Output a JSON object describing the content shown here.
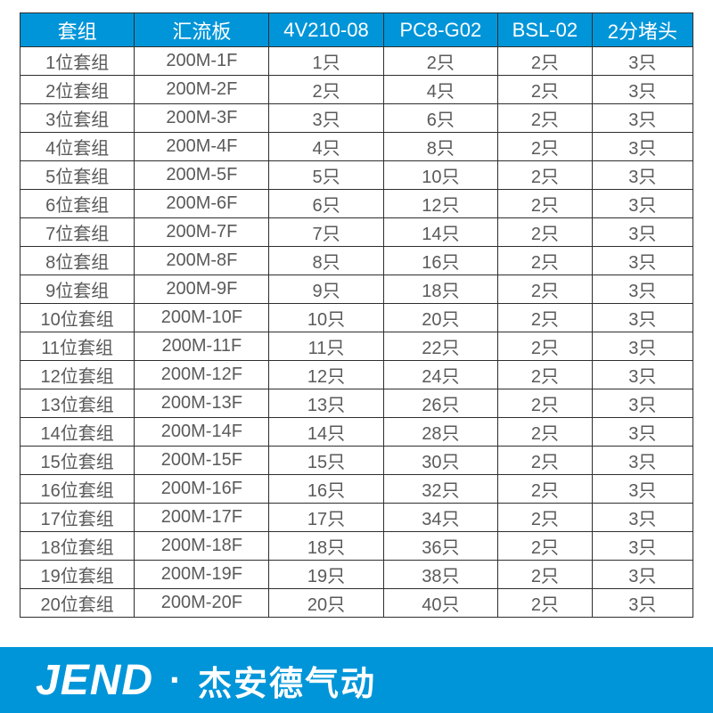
{
  "table": {
    "header_bg": "#0095d9",
    "header_fg": "#ffffff",
    "border_color": "#2e2e2e",
    "cell_fg": "#5a5a5a",
    "columns": [
      "套组",
      "汇流板",
      "4V210-08",
      "PC8-G02",
      "BSL-02",
      "2分堵头"
    ],
    "rows": [
      [
        "1位套组",
        "200M-1F",
        "1只",
        "2只",
        "2只",
        "3只"
      ],
      [
        "2位套组",
        "200M-2F",
        "2只",
        "4只",
        "2只",
        "3只"
      ],
      [
        "3位套组",
        "200M-3F",
        "3只",
        "6只",
        "2只",
        "3只"
      ],
      [
        "4位套组",
        "200M-4F",
        "4只",
        "8只",
        "2只",
        "3只"
      ],
      [
        "5位套组",
        "200M-5F",
        "5只",
        "10只",
        "2只",
        "3只"
      ],
      [
        "6位套组",
        "200M-6F",
        "6只",
        "12只",
        "2只",
        "3只"
      ],
      [
        "7位套组",
        "200M-7F",
        "7只",
        "14只",
        "2只",
        "3只"
      ],
      [
        "8位套组",
        "200M-8F",
        "8只",
        "16只",
        "2只",
        "3只"
      ],
      [
        "9位套组",
        "200M-9F",
        "9只",
        "18只",
        "2只",
        "3只"
      ],
      [
        "10位套组",
        "200M-10F",
        "10只",
        "20只",
        "2只",
        "3只"
      ],
      [
        "11位套组",
        "200M-11F",
        "11只",
        "22只",
        "2只",
        "3只"
      ],
      [
        "12位套组",
        "200M-12F",
        "12只",
        "24只",
        "2只",
        "3只"
      ],
      [
        "13位套组",
        "200M-13F",
        "13只",
        "26只",
        "2只",
        "3只"
      ],
      [
        "14位套组",
        "200M-14F",
        "14只",
        "28只",
        "2只",
        "3只"
      ],
      [
        "15位套组",
        "200M-15F",
        "15只",
        "30只",
        "2只",
        "3只"
      ],
      [
        "16位套组",
        "200M-16F",
        "16只",
        "32只",
        "2只",
        "3只"
      ],
      [
        "17位套组",
        "200M-17F",
        "17只",
        "34只",
        "2只",
        "3只"
      ],
      [
        "18位套组",
        "200M-18F",
        "18只",
        "36只",
        "2只",
        "3只"
      ],
      [
        "19位套组",
        "200M-19F",
        "19只",
        "38只",
        "2只",
        "3只"
      ],
      [
        "20位套组",
        "200M-20F",
        "20只",
        "40只",
        "2只",
        "3只"
      ]
    ]
  },
  "footer": {
    "bg": "#0095d9",
    "brand_en": "JEND",
    "separator": "·",
    "brand_cn": "杰安德气动"
  }
}
